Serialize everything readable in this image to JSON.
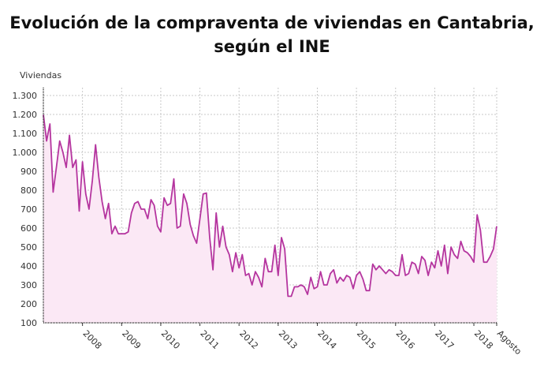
{
  "chart_data": {
    "type": "area",
    "title": "Evolución de la compraventa de viviendas en Cantabria, según el INE",
    "ylabel": "Viviendas",
    "xlabel": "",
    "ylim": [
      100,
      1300
    ],
    "yticks": [
      "100",
      "200",
      "300",
      "400",
      "500",
      "600",
      "700",
      "800",
      "900",
      "1.000",
      "1.100",
      "1.200",
      "1.300"
    ],
    "xticks": [
      "2008",
      "2009",
      "2010",
      "2011",
      "2012",
      "2013",
      "2014",
      "2015",
      "2016",
      "2017",
      "2018",
      "Agosto"
    ],
    "x_start": "2007-01",
    "x_end": "2018-08",
    "frequency": "monthly",
    "grid": true,
    "line_color": "#b5359f",
    "fill_color": "#fbe8f5",
    "values": [
      1200,
      1060,
      1150,
      790,
      920,
      1060,
      1000,
      920,
      1090,
      920,
      960,
      690,
      950,
      780,
      700,
      850,
      1040,
      870,
      740,
      650,
      730,
      570,
      610,
      570,
      570,
      570,
      580,
      680,
      730,
      740,
      700,
      700,
      650,
      750,
      720,
      610,
      580,
      760,
      720,
      730,
      860,
      600,
      610,
      780,
      730,
      620,
      560,
      520,
      650,
      780,
      785,
      550,
      380,
      680,
      500,
      610,
      500,
      460,
      370,
      470,
      390,
      460,
      350,
      360,
      300,
      370,
      340,
      290,
      440,
      370,
      370,
      510,
      350,
      550,
      490,
      240,
      240,
      290,
      290,
      300,
      290,
      250,
      340,
      280,
      290,
      370,
      300,
      300,
      360,
      380,
      310,
      340,
      320,
      350,
      340,
      280,
      350,
      370,
      330,
      270,
      270,
      410,
      380,
      400,
      380,
      360,
      380,
      370,
      350,
      350,
      460,
      350,
      360,
      420,
      410,
      360,
      450,
      430,
      350,
      420,
      390,
      480,
      400,
      510,
      360,
      500,
      460,
      440,
      530,
      480,
      470,
      450,
      420,
      670,
      590,
      420,
      420,
      450,
      490,
      610
    ]
  }
}
